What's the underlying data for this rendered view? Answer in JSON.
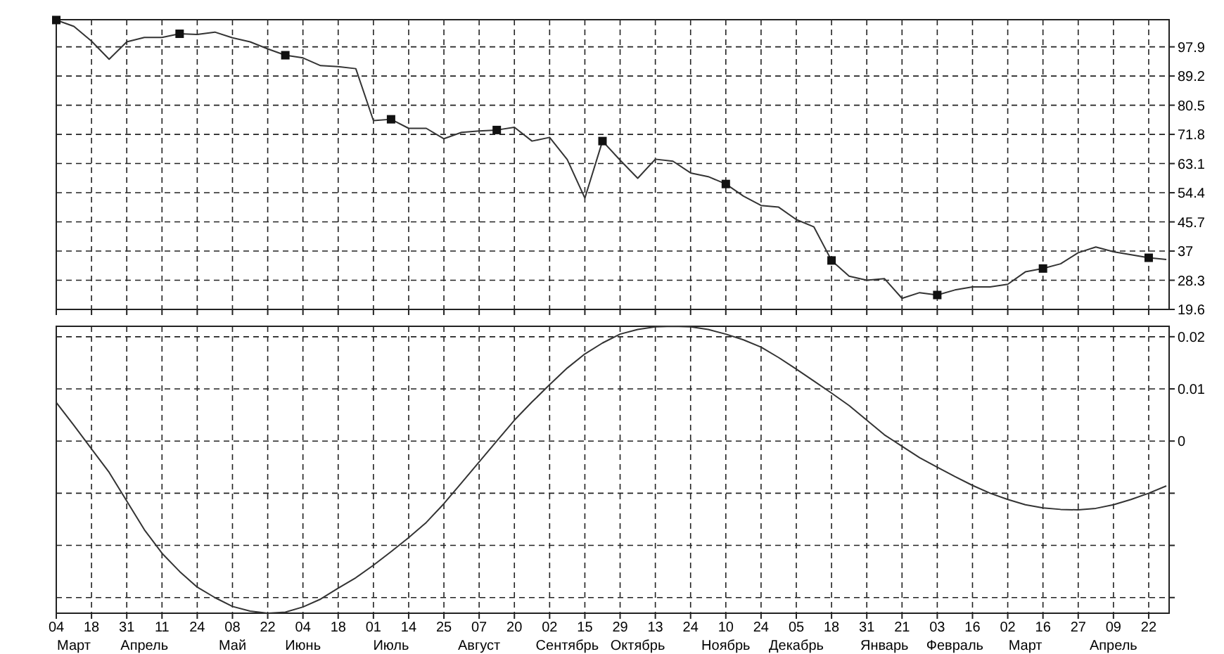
{
  "chart_data": [
    {
      "type": "line",
      "ylim": [
        19.6,
        106
      ],
      "yticks": [
        19.6,
        28.3,
        37,
        45.7,
        54.4,
        63.1,
        71.8,
        80.5,
        89.2,
        97.9
      ],
      "grid": true,
      "tick_labels": "y",
      "categories": [
        "04",
        "\nМарт",
        "18",
        null,
        "31",
        "\nАпрель",
        "11",
        null,
        "24",
        null,
        "08\nМай",
        null,
        "22",
        null,
        "04\nИюнь",
        null,
        "18",
        null,
        "01",
        "\nИюль",
        "14",
        null,
        "25",
        null,
        "07\nАвгуст",
        null,
        "20",
        null,
        "02",
        "\nСентябрь",
        "15",
        null,
        "29",
        "\nОктябрь",
        "13",
        null,
        "24",
        null,
        "10\nНоябрь",
        null,
        "24",
        null,
        "05\nДекабрь",
        null,
        "18",
        null,
        "31",
        "\nЯнварь",
        "21",
        null,
        "03",
        "\nФевраль",
        "16",
        null,
        "02",
        "\nМарт",
        "16",
        null,
        "27",
        null,
        "09\nАпрель",
        null,
        "22",
        null
      ],
      "series": [
        {
          "color": "#333333",
          "values": [
            105.9,
            104.0,
            99.6,
            94.2,
            99.4,
            100.7,
            100.7,
            101.8,
            101.6,
            102.3,
            100.6,
            99.4,
            97.3,
            95.4,
            94.6,
            92.3,
            92.0,
            91.4,
            75.9,
            76.3,
            73.6,
            73.6,
            70.5,
            72.4,
            72.8,
            73.1,
            73.9,
            69.8,
            70.9,
            64.3,
            52.8,
            69.8,
            64.1,
            58.7,
            64.4,
            63.8,
            60.3,
            59.2,
            57.0,
            53.4,
            50.6,
            50.1,
            46.4,
            44.2,
            34.2,
            29.5,
            28.3,
            28.8,
            22.9,
            24.6,
            23.9,
            25.4,
            26.3,
            26.3,
            27.1,
            30.8,
            31.8,
            33.2,
            36.5,
            38.2,
            36.8,
            35.9,
            35.0,
            34.5
          ]
        },
        {
          "type": "scatter",
          "color": "#111111",
          "marker": "square",
          "values": [
            105.9,
            null,
            null,
            null,
            null,
            null,
            null,
            101.8,
            null,
            null,
            null,
            null,
            null,
            95.4,
            null,
            null,
            null,
            null,
            null,
            76.3,
            null,
            null,
            null,
            null,
            null,
            73.1,
            null,
            null,
            null,
            null,
            null,
            69.8,
            null,
            null,
            null,
            null,
            null,
            null,
            57.0,
            null,
            null,
            null,
            null,
            null,
            34.2,
            null,
            null,
            null,
            null,
            null,
            23.9,
            null,
            null,
            null,
            null,
            null,
            31.8,
            null,
            null,
            null,
            null,
            null,
            35.0,
            null
          ]
        }
      ]
    },
    {
      "type": "line",
      "ylim": [
        -0.033,
        0.022
      ],
      "yticks": [
        {
          "value": -0.03,
          "label": null
        },
        {
          "value": -0.02,
          "label": null
        },
        {
          "value": -0.01,
          "label": null
        },
        0,
        0.01,
        0.02
      ],
      "grid": true,
      "categories": [
        "04",
        "\nМарт",
        "18",
        null,
        "31",
        "\nАпрель",
        "11",
        null,
        "24",
        null,
        "08\nМай",
        null,
        "22",
        null,
        "04\nИюнь",
        null,
        "18",
        null,
        "01",
        "\nИюль",
        "14",
        null,
        "25",
        null,
        "07\nАвгуст",
        null,
        "20",
        null,
        "02",
        "\nСентябрь",
        "15",
        null,
        "29",
        "\nОктябрь",
        "13",
        null,
        "24",
        null,
        "10\nНоябрь",
        null,
        "24",
        null,
        "05\nДекабрь",
        null,
        "18",
        null,
        "31",
        "\nЯнварь",
        "21",
        null,
        "03",
        "\nФевраль",
        "16",
        null,
        "02",
        "\nМарт",
        "16",
        null,
        "27",
        null,
        "09\nАпрель",
        null,
        "22",
        null
      ],
      "series": [
        {
          "color": "#333333",
          "values": [
            0.0074,
            0.003,
            -0.0015,
            -0.006,
            -0.0115,
            -0.017,
            -0.0215,
            -0.025,
            -0.028,
            -0.03,
            -0.0317,
            -0.0326,
            -0.033,
            -0.0328,
            -0.0318,
            -0.0303,
            -0.0282,
            -0.0262,
            -0.0238,
            -0.0212,
            -0.0185,
            -0.0156,
            -0.012,
            -0.008,
            -0.004,
            0.0,
            0.004,
            0.0075,
            0.0108,
            0.014,
            0.0167,
            0.0188,
            0.0205,
            0.0214,
            0.0219,
            0.022,
            0.0219,
            0.0214,
            0.0205,
            0.0194,
            0.018,
            0.016,
            0.0138,
            0.0115,
            0.0092,
            0.0068,
            0.004,
            0.0012,
            -0.001,
            -0.0032,
            -0.005,
            -0.0068,
            -0.0085,
            -0.01,
            -0.0112,
            -0.0122,
            -0.0128,
            -0.0131,
            -0.0132,
            -0.0129,
            -0.0122,
            -0.0112,
            -0.01,
            -0.0086
          ]
        }
      ]
    }
  ]
}
